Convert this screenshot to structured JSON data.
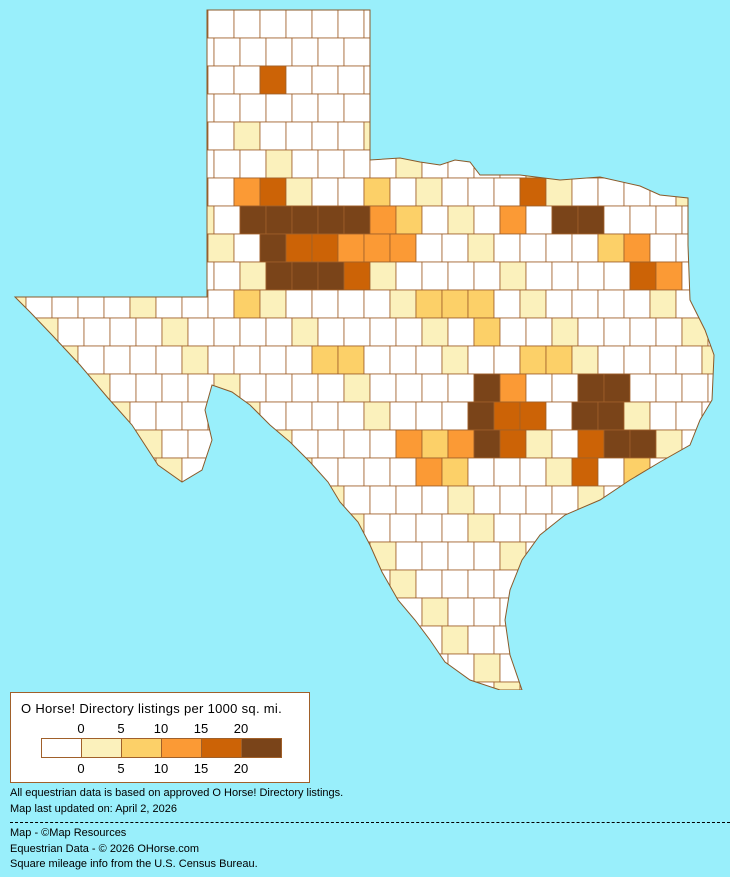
{
  "legend": {
    "title": "O Horse! Directory listings per 1000 sq. mi.",
    "ticks": [
      "0",
      "5",
      "10",
      "15",
      "20"
    ],
    "colors": [
      "#ffffff",
      "#fbf1bc",
      "#fcd068",
      "#fb9a35",
      "#cc6306",
      "#7a4419"
    ]
  },
  "notes": {
    "data_basis": "All equestrian data is based on approved O Horse! Directory listings.",
    "updated": "Map last updated on: April 2, 2026"
  },
  "credits": {
    "map": "Map - ©Map Resources",
    "data": "Equestrian Data - © 2026 OHorse.com",
    "census": "Square mileage info from the U.S. Census Bureau."
  },
  "colors": {
    "background": "#99effb",
    "border": "#a0602a"
  }
}
